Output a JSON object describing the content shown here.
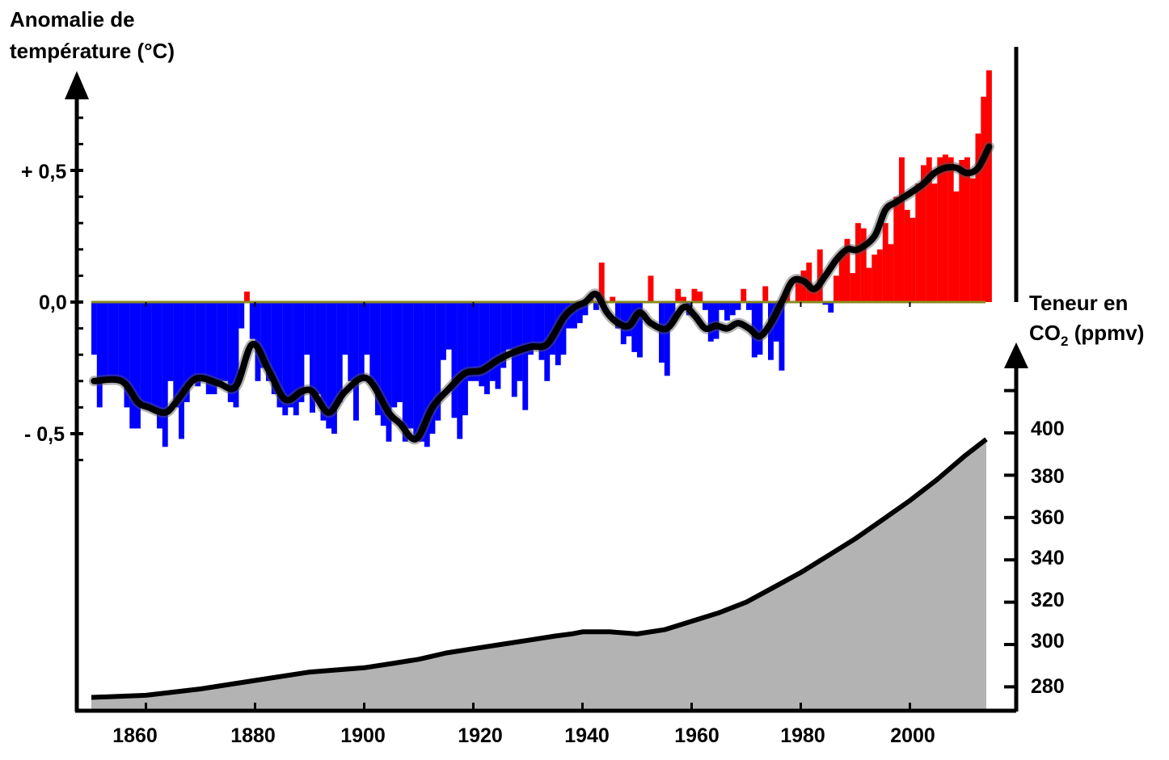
{
  "chart_data": {
    "type": "bar",
    "temperature_axis": {
      "title_line1": "Anomalie de",
      "title_line2": "température  (°C)",
      "ticks": [
        "+ 0,5",
        "0,0",
        "- 0,5"
      ],
      "tick_values": [
        0.5,
        0.0,
        -0.5
      ]
    },
    "co2_axis": {
      "title_line1": "Teneur en",
      "title_line2_pre": "CO",
      "title_line2_sub": "2",
      "title_line2_post": " (ppmv)",
      "ticks": [
        "400",
        "380",
        "360",
        "340",
        "320",
        "300",
        "280"
      ],
      "tick_values": [
        400,
        380,
        360,
        340,
        320,
        300,
        280
      ]
    },
    "x_axis": {
      "ticks": [
        "1860",
        "1880",
        "1900",
        "1920",
        "1940",
        "1960",
        "1980",
        "2000"
      ],
      "tick_values": [
        1860,
        1880,
        1900,
        1920,
        1940,
        1960,
        1980,
        2000
      ],
      "range": [
        1850,
        2015
      ]
    },
    "temp_ylim": [
      -0.85,
      1.0
    ],
    "co2_ylim": [
      275,
      420
    ],
    "colors": {
      "positive": "#ff0000",
      "negative": "#0000ff",
      "smooth_line": "#000000",
      "co2_fill": "#b3b3b3",
      "zero_line": "#8a8a20"
    },
    "series": [
      {
        "name": "",
        "type": "bar",
        "years": [
          1850,
          1851,
          1852,
          1853,
          1854,
          1855,
          1856,
          1857,
          1858,
          1859,
          1860,
          1861,
          1862,
          1863,
          1864,
          1865,
          1866,
          1867,
          1868,
          1869,
          1870,
          1871,
          1872,
          1873,
          1874,
          1875,
          1876,
          1877,
          1878,
          1879,
          1880,
          1881,
          1882,
          1883,
          1884,
          1885,
          1886,
          1887,
          1888,
          1889,
          1890,
          1891,
          1892,
          1893,
          1894,
          1895,
          1896,
          1897,
          1898,
          1899,
          1900,
          1901,
          1902,
          1903,
          1904,
          1905,
          1906,
          1907,
          1908,
          1909,
          1910,
          1911,
          1912,
          1913,
          1914,
          1915,
          1916,
          1917,
          1918,
          1919,
          1920,
          1921,
          1922,
          1923,
          1924,
          1925,
          1926,
          1927,
          1928,
          1929,
          1930,
          1931,
          1932,
          1933,
          1934,
          1935,
          1936,
          1937,
          1938,
          1939,
          1940,
          1941,
          1942,
          1943,
          1944,
          1945,
          1946,
          1947,
          1948,
          1949,
          1950,
          1951,
          1952,
          1953,
          1954,
          1955,
          1956,
          1957,
          1958,
          1959,
          1960,
          1961,
          1962,
          1963,
          1964,
          1965,
          1966,
          1967,
          1968,
          1969,
          1970,
          1971,
          1972,
          1973,
          1974,
          1975,
          1976,
          1977,
          1978,
          1979,
          1980,
          1981,
          1982,
          1983,
          1984,
          1985,
          1986,
          1987,
          1988,
          1989,
          1990,
          1991,
          1992,
          1993,
          1994,
          1995,
          1996,
          1997,
          1998,
          1999,
          2000,
          2001,
          2002,
          2003,
          2004,
          2005,
          2006,
          2007,
          2008,
          2009,
          2010,
          2011,
          2012,
          2013,
          2014
        ],
        "values": [
          -0.2,
          -0.4,
          -0.3,
          -0.3,
          -0.3,
          -0.3,
          -0.4,
          -0.48,
          -0.48,
          -0.4,
          -0.41,
          -0.4,
          -0.48,
          -0.55,
          -0.3,
          -0.4,
          -0.52,
          -0.38,
          -0.3,
          -0.32,
          -0.3,
          -0.35,
          -0.35,
          -0.3,
          -0.3,
          -0.38,
          -0.4,
          -0.1,
          0.04,
          -0.14,
          -0.3,
          -0.25,
          -0.3,
          -0.35,
          -0.4,
          -0.43,
          -0.4,
          -0.43,
          -0.38,
          -0.2,
          -0.42,
          -0.35,
          -0.45,
          -0.48,
          -0.5,
          -0.38,
          -0.2,
          -0.3,
          -0.45,
          -0.3,
          -0.2,
          -0.3,
          -0.43,
          -0.47,
          -0.53,
          -0.4,
          -0.38,
          -0.53,
          -0.48,
          -0.52,
          -0.53,
          -0.55,
          -0.5,
          -0.45,
          -0.22,
          -0.18,
          -0.44,
          -0.52,
          -0.43,
          -0.3,
          -0.3,
          -0.32,
          -0.35,
          -0.3,
          -0.33,
          -0.25,
          -0.18,
          -0.36,
          -0.3,
          -0.41,
          -0.2,
          -0.18,
          -0.22,
          -0.3,
          -0.2,
          -0.24,
          -0.2,
          -0.1,
          -0.1,
          -0.08,
          -0.05,
          0.01,
          -0.03,
          0.15,
          0.0,
          0.02,
          -0.1,
          -0.16,
          -0.13,
          -0.19,
          -0.21,
          0.0,
          0.1,
          0.0,
          -0.23,
          -0.28,
          -0.08,
          0.05,
          0.02,
          -0.05,
          0.05,
          0.04,
          -0.03,
          -0.15,
          -0.14,
          -0.03,
          -0.07,
          -0.05,
          -0.03,
          0.05,
          -0.03,
          -0.21,
          -0.2,
          0.06,
          -0.22,
          -0.15,
          -0.26,
          0.04,
          0.0,
          0.08,
          0.12,
          0.15,
          0.04,
          0.2,
          -0.01,
          -0.04,
          0.1,
          0.18,
          0.24,
          0.11,
          0.3,
          0.28,
          0.13,
          0.18,
          0.2,
          0.3,
          0.22,
          0.4,
          0.55,
          0.35,
          0.32,
          0.45,
          0.52,
          0.55,
          0.45,
          0.55,
          0.56,
          0.55,
          0.42,
          0.54,
          0.55,
          0.47,
          0.64,
          0.78,
          0.88
        ]
      },
      {
        "name": "",
        "type": "line",
        "x": [
          1850,
          1855,
          1858,
          1860,
          1863,
          1865,
          1868,
          1870,
          1873,
          1876,
          1879,
          1882,
          1885,
          1888,
          1890,
          1893,
          1896,
          1900,
          1904,
          1906,
          1909,
          1912,
          1915,
          1918,
          1921,
          1924,
          1927,
          1930,
          1933,
          1936,
          1938,
          1940,
          1942,
          1944,
          1946,
          1948,
          1950,
          1952,
          1955,
          1958,
          1960,
          1962,
          1964,
          1966,
          1968,
          1970,
          1972,
          1974,
          1976,
          1978,
          1980,
          1982,
          1984,
          1986,
          1988,
          1990,
          1993,
          1995,
          1997,
          2000,
          2002,
          2004,
          2006,
          2008,
          2010,
          2012,
          2014
        ],
        "y": [
          -0.3,
          -0.3,
          -0.38,
          -0.4,
          -0.42,
          -0.38,
          -0.3,
          -0.29,
          -0.31,
          -0.32,
          -0.16,
          -0.26,
          -0.37,
          -0.34,
          -0.34,
          -0.42,
          -0.34,
          -0.29,
          -0.42,
          -0.46,
          -0.52,
          -0.4,
          -0.33,
          -0.27,
          -0.26,
          -0.22,
          -0.19,
          -0.17,
          -0.16,
          -0.06,
          -0.02,
          0.0,
          0.03,
          -0.04,
          -0.08,
          -0.09,
          -0.04,
          -0.08,
          -0.1,
          -0.02,
          -0.05,
          -0.1,
          -0.09,
          -0.1,
          -0.08,
          -0.1,
          -0.13,
          -0.08,
          0.0,
          0.08,
          0.08,
          0.05,
          0.1,
          0.16,
          0.2,
          0.2,
          0.25,
          0.35,
          0.38,
          0.42,
          0.45,
          0.49,
          0.51,
          0.51,
          0.49,
          0.51,
          0.59
        ]
      },
      {
        "name": "",
        "type": "area",
        "x": [
          1850,
          1860,
          1870,
          1880,
          1890,
          1900,
          1905,
          1910,
          1915,
          1920,
          1925,
          1930,
          1935,
          1938,
          1940,
          1945,
          1950,
          1955,
          1960,
          1965,
          1970,
          1975,
          1980,
          1985,
          1990,
          1995,
          2000,
          2005,
          2010,
          2014
        ],
        "y": [
          275,
          276,
          279,
          283,
          287,
          289,
          291,
          293,
          296,
          298,
          300,
          302,
          304,
          305,
          306,
          306,
          305,
          307,
          311,
          315,
          320,
          327,
          334,
          342,
          350,
          359,
          368,
          378,
          389,
          397
        ]
      }
    ]
  }
}
